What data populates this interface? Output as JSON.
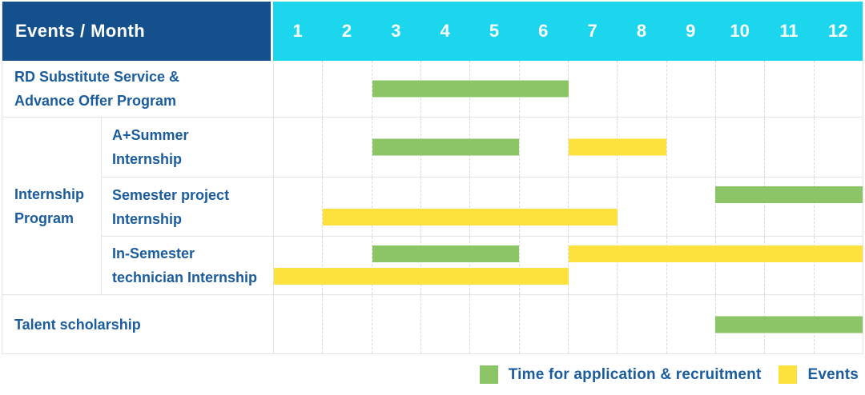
{
  "header": {
    "title": "Events / Month",
    "months": [
      "1",
      "2",
      "3",
      "4",
      "5",
      "6",
      "7",
      "8",
      "9",
      "10",
      "11",
      "12"
    ]
  },
  "labels": {
    "row_rd": [
      "RD Substitute Service &",
      "Advance Offer Program"
    ],
    "group_internship": [
      "Internship",
      "Program"
    ],
    "row_aplus": [
      "A+Summer",
      "Internship"
    ],
    "row_semester": [
      "Semester project",
      "Internship"
    ],
    "row_insemester": [
      "In-Semester",
      "technician Internship"
    ],
    "row_talent": [
      "Talent scholarship"
    ]
  },
  "legend": {
    "items": [
      {
        "swatch": "green",
        "label": "Time for application & recruitment"
      },
      {
        "swatch": "yellow",
        "label": "Events"
      }
    ]
  },
  "colors": {
    "header_bg": "#14508C",
    "month_header_bg": "#1CD6EE",
    "bar_green": "#8BC565",
    "bar_yellow": "#FDE23E",
    "label_text": "#1B5C9F",
    "grid_line": "#E4E4E4",
    "month_line": "#D9D9D9",
    "header_text": "#FFFFFF"
  },
  "chart_data": {
    "type": "gantt",
    "title": "Events / Month",
    "x_axis": {
      "label": "Month",
      "ticks": [
        1,
        2,
        3,
        4,
        5,
        6,
        7,
        8,
        9,
        10,
        11,
        12
      ],
      "range": [
        1,
        12
      ],
      "grid": true
    },
    "legend_position": "bottom-right",
    "series_legend": [
      "Time for application & recruitment",
      "Events"
    ],
    "rows": [
      {
        "group": null,
        "label": "RD Substitute Service & Advance Offer Program",
        "bars": [
          {
            "series": "Time for application & recruitment",
            "color": "bar_green",
            "start_month": 3,
            "end_month": 6,
            "line": 0
          }
        ]
      },
      {
        "group": "Internship Program",
        "label": "A+Summer Internship",
        "bars": [
          {
            "series": "Time for application & recruitment",
            "color": "bar_green",
            "start_month": 3,
            "end_month": 5,
            "line": 0
          },
          {
            "series": "Events",
            "color": "bar_yellow",
            "start_month": 7,
            "end_month": 8,
            "line": 0
          }
        ]
      },
      {
        "group": "Internship Program",
        "label": "Semester project Internship",
        "bars": [
          {
            "series": "Time for application & recruitment",
            "color": "bar_green",
            "start_month": 10,
            "end_month": 12,
            "line": 0
          },
          {
            "series": "Events",
            "color": "bar_yellow",
            "start_month": 2,
            "end_month": 7,
            "line": 1
          }
        ]
      },
      {
        "group": "Internship Program",
        "label": "In-Semester technician Internship",
        "bars": [
          {
            "series": "Time for application & recruitment",
            "color": "bar_green",
            "start_month": 3,
            "end_month": 5,
            "line": 0
          },
          {
            "series": "Events",
            "color": "bar_yellow",
            "start_month": 7,
            "end_month": 12,
            "line": 0
          },
          {
            "series": "Events",
            "color": "bar_yellow",
            "start_month": 1,
            "end_month": 6,
            "line": 1
          }
        ]
      },
      {
        "group": null,
        "label": "Talent scholarship",
        "bars": [
          {
            "series": "Time for application & recruitment",
            "color": "bar_green",
            "start_month": 10,
            "end_month": 12,
            "line": 0
          }
        ]
      }
    ]
  }
}
